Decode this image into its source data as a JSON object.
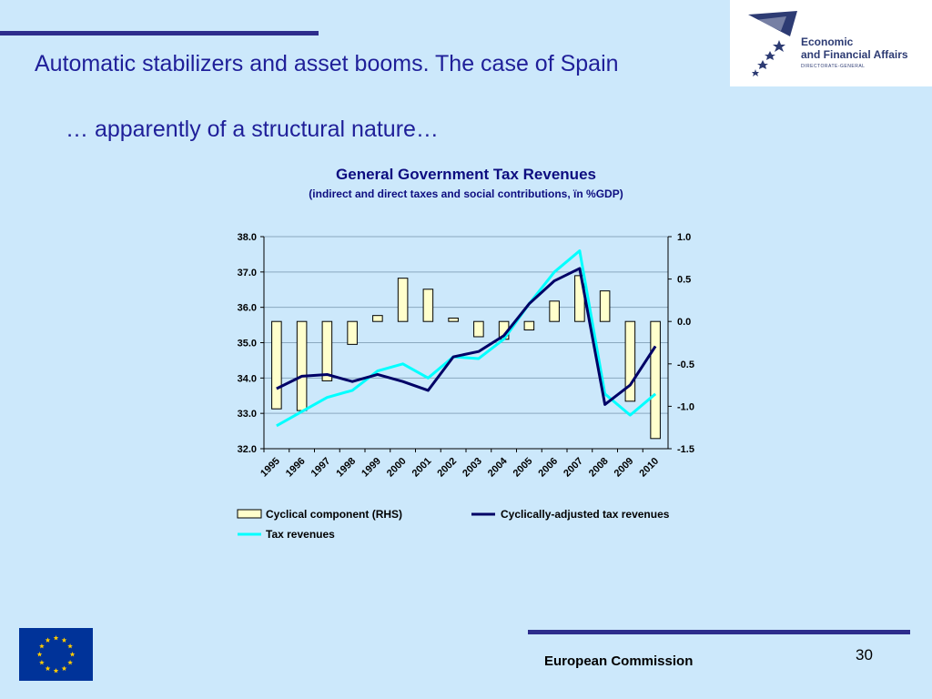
{
  "slide": {
    "title": "Automatic stabilizers and asset booms. The case of Spain",
    "subtitle": "… apparently of a structural nature…",
    "footer": "European Commission",
    "page_number": "30"
  },
  "logo": {
    "line1": "Economic",
    "line2": "and Financial Affairs",
    "line3": "DIRECTORATE-GENERAL"
  },
  "colors": {
    "background": "#cce8fb",
    "title": "#1f1f99",
    "bar_fill": "#ffffcc",
    "adjusted_line": "#000066",
    "tax_line": "#00ffff",
    "eu_blue": "#003399",
    "eu_star": "#ffcc00"
  },
  "chart_data": {
    "type": "bar+line",
    "title": "General Government Tax Revenues",
    "subtitle": "(indirect and direct taxes and social contributions, ïn %GDP)",
    "categories": [
      "1995",
      "1996",
      "1997",
      "1998",
      "1999",
      "2000",
      "2001",
      "2002",
      "2003",
      "2004",
      "2005",
      "2006",
      "2007",
      "2008",
      "2009",
      "2010"
    ],
    "left_axis": {
      "min": 32.0,
      "max": 38.0,
      "ticks": [
        "38.0",
        "37.0",
        "36.0",
        "35.0",
        "34.0",
        "33.0",
        "32.0"
      ]
    },
    "right_axis": {
      "min": -1.5,
      "max": 1.0,
      "ticks": [
        "1.0",
        "0.5",
        "0.0",
        "-0.5",
        "-1.0",
        "-1.5"
      ]
    },
    "grid": true,
    "legend_position": "bottom",
    "series": [
      {
        "name": "Cyclical component (RHS)",
        "type": "bar",
        "axis": "right",
        "values": [
          -1.03,
          -1.05,
          -0.7,
          -0.27,
          0.07,
          0.51,
          0.38,
          0.04,
          -0.18,
          -0.21,
          -0.1,
          0.24,
          0.54,
          0.36,
          -0.94,
          -1.38
        ]
      },
      {
        "name": "Cyclically-adjusted tax revenues",
        "type": "line",
        "axis": "left",
        "values": [
          33.7,
          34.05,
          34.1,
          33.9,
          34.1,
          33.9,
          33.65,
          34.6,
          34.75,
          35.2,
          36.1,
          36.75,
          37.1,
          33.25,
          33.8,
          34.9
        ]
      },
      {
        "name": "Tax revenues",
        "type": "line",
        "axis": "left",
        "values": [
          32.65,
          33.05,
          33.45,
          33.65,
          34.2,
          34.4,
          34.0,
          34.6,
          34.55,
          35.1,
          36.1,
          37.0,
          37.6,
          33.55,
          32.95,
          33.55
        ]
      }
    ]
  }
}
